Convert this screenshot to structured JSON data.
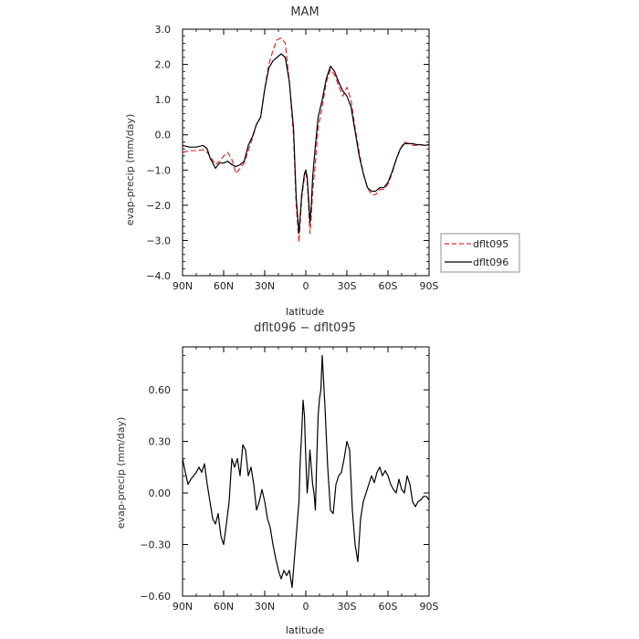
{
  "chart_data": [
    {
      "type": "line",
      "title": "MAM",
      "xlabel": "latitude",
      "ylabel": "evap-precip (mm/day)",
      "xlim": [
        90,
        -90
      ],
      "ylim": [
        -4.0,
        3.0
      ],
      "x_tick_values": [
        90,
        60,
        30,
        0,
        -30,
        -60,
        -90
      ],
      "x_tick_labels": [
        "90N",
        "60N",
        "30N",
        "0",
        "30S",
        "60S",
        "90S"
      ],
      "y_tick_values": [
        3.0,
        2.0,
        1.0,
        0.0,
        -1.0,
        -2.0,
        -3.0,
        -4.0
      ],
      "y_tick_labels": [
        "3.0",
        "2.0",
        "1.0",
        "0.0",
        "−1.0",
        "−2.0",
        "−3.0",
        "−4.0"
      ],
      "legend_position": "right, outside plot",
      "series": [
        {
          "name": "dflt095",
          "color": "#e8262b",
          "dash": "dashed",
          "x": [
            90,
            85,
            80,
            75,
            72,
            70,
            66,
            63,
            60,
            57,
            54,
            51,
            48,
            45,
            42,
            39,
            36,
            33,
            30,
            27,
            24,
            21,
            18,
            15,
            12,
            9,
            7,
            5,
            3,
            1,
            0,
            -1,
            -2,
            -3,
            -4,
            -5,
            -7,
            -9,
            -12,
            -15,
            -18,
            -21,
            -24,
            -27,
            -30,
            -33,
            -36,
            -39,
            -42,
            -45,
            -48,
            -51,
            -54,
            -57,
            -60,
            -63,
            -66,
            -69,
            -72,
            -75,
            -78,
            -81,
            -84,
            -87,
            -90
          ],
          "y": [
            -0.5,
            -0.45,
            -0.45,
            -0.42,
            -0.5,
            -0.6,
            -0.85,
            -0.75,
            -0.6,
            -0.5,
            -0.7,
            -1.1,
            -0.95,
            -0.8,
            -0.45,
            -0.1,
            0.3,
            0.5,
            1.3,
            2.0,
            2.4,
            2.7,
            2.75,
            2.6,
            1.5,
            0.0,
            -2.0,
            -3.05,
            -1.8,
            -1.2,
            -1.1,
            -1.3,
            -2.0,
            -2.8,
            -2.3,
            -1.6,
            -0.8,
            0.2,
            0.8,
            1.5,
            1.85,
            1.7,
            1.4,
            1.1,
            1.35,
            1.0,
            0.2,
            -0.5,
            -1.1,
            -1.5,
            -1.7,
            -1.7,
            -1.55,
            -1.55,
            -1.4,
            -1.1,
            -0.7,
            -0.4,
            -0.2,
            -0.25,
            -0.3,
            -0.3,
            -0.28,
            -0.3,
            -0.28
          ]
        },
        {
          "name": "dflt096",
          "color": "#000000",
          "dash": "solid",
          "x": [
            90,
            85,
            80,
            75,
            72,
            70,
            66,
            63,
            60,
            57,
            54,
            51,
            48,
            45,
            42,
            39,
            36,
            33,
            30,
            27,
            24,
            21,
            18,
            15,
            12,
            9,
            7,
            5,
            3,
            1,
            0,
            -1,
            -2,
            -3,
            -4,
            -5,
            -7,
            -9,
            -12,
            -15,
            -18,
            -21,
            -24,
            -27,
            -30,
            -33,
            -36,
            -39,
            -42,
            -45,
            -48,
            -51,
            -54,
            -57,
            -60,
            -63,
            -66,
            -69,
            -72,
            -75,
            -78,
            -81,
            -84,
            -87,
            -90
          ],
          "y": [
            -0.3,
            -0.35,
            -0.35,
            -0.3,
            -0.4,
            -0.65,
            -0.95,
            -0.8,
            -0.8,
            -0.75,
            -0.85,
            -0.9,
            -0.85,
            -0.75,
            -0.3,
            -0.05,
            0.3,
            0.5,
            1.3,
            1.9,
            2.1,
            2.2,
            2.3,
            2.2,
            1.5,
            0.2,
            -1.8,
            -2.8,
            -1.7,
            -1.1,
            -1.0,
            -1.2,
            -1.8,
            -2.5,
            -2.0,
            -1.2,
            -0.3,
            0.5,
            1.0,
            1.6,
            1.95,
            1.8,
            1.5,
            1.25,
            1.1,
            0.8,
            0.1,
            -0.6,
            -1.1,
            -1.5,
            -1.6,
            -1.6,
            -1.5,
            -1.5,
            -1.35,
            -1.05,
            -0.7,
            -0.4,
            -0.25,
            -0.25,
            -0.25,
            -0.28,
            -0.28,
            -0.3,
            -0.28
          ]
        }
      ]
    },
    {
      "type": "line",
      "title": "dflt096 − dflt095",
      "xlabel": "latitude",
      "ylabel": "evap-precip (mm/day)",
      "xlim": [
        90,
        -90
      ],
      "ylim": [
        -0.6,
        0.85
      ],
      "x_tick_values": [
        90,
        60,
        30,
        0,
        -30,
        -60,
        -90
      ],
      "x_tick_labels": [
        "90N",
        "60N",
        "30N",
        "0",
        "30S",
        "60S",
        "90S"
      ],
      "y_tick_values": [
        0.6,
        0.3,
        0.0,
        -0.3,
        -0.6
      ],
      "y_tick_labels": [
        "0.60",
        "0.30",
        "0.00",
        "−0.30",
        "−0.60"
      ],
      "series": [
        {
          "color": "#000000",
          "dash": "solid",
          "x": [
            90,
            88,
            86,
            84,
            82,
            80,
            78,
            76,
            74,
            72,
            70,
            68,
            66,
            64,
            62,
            60,
            58,
            56,
            54,
            52,
            50,
            48,
            46,
            44,
            42,
            40,
            38,
            36,
            34,
            32,
            30,
            28,
            26,
            24,
            22,
            20,
            18,
            16,
            14,
            12,
            10,
            8,
            6,
            5,
            4,
            3,
            2,
            1,
            0,
            -1,
            -2,
            -3,
            -4,
            -5,
            -6,
            -7,
            -8,
            -9,
            -10,
            -11,
            -12,
            -14,
            -16,
            -18,
            -20,
            -22,
            -24,
            -26,
            -28,
            -30,
            -32,
            -34,
            -36,
            -38,
            -40,
            -42,
            -44,
            -46,
            -48,
            -50,
            -52,
            -54,
            -56,
            -58,
            -60,
            -62,
            -64,
            -66,
            -68,
            -70,
            -72,
            -74,
            -76,
            -78,
            -80,
            -82,
            -84,
            -86,
            -88,
            -90
          ],
          "y": [
            0.2,
            0.12,
            0.05,
            0.08,
            0.1,
            0.12,
            0.15,
            0.12,
            0.17,
            0.05,
            -0.05,
            -0.15,
            -0.18,
            -0.12,
            -0.25,
            -0.3,
            -0.18,
            -0.05,
            0.2,
            0.15,
            0.2,
            0.1,
            0.28,
            0.25,
            0.1,
            0.15,
            0.05,
            -0.1,
            -0.05,
            0.02,
            -0.05,
            -0.15,
            -0.2,
            -0.3,
            -0.38,
            -0.45,
            -0.5,
            -0.45,
            -0.48,
            -0.45,
            -0.55,
            -0.35,
            -0.15,
            -0.05,
            0.2,
            0.35,
            0.54,
            0.45,
            0.2,
            0.0,
            0.1,
            0.25,
            0.15,
            0.05,
            0.0,
            -0.1,
            0.2,
            0.45,
            0.55,
            0.6,
            0.8,
            0.5,
            0.15,
            -0.1,
            -0.12,
            0.05,
            0.1,
            0.12,
            0.2,
            0.3,
            0.25,
            -0.1,
            -0.3,
            -0.4,
            -0.15,
            -0.05,
            0.0,
            0.05,
            0.1,
            0.06,
            0.12,
            0.15,
            0.1,
            0.13,
            0.1,
            0.05,
            0.02,
            0.0,
            0.08,
            0.02,
            0.0,
            0.1,
            0.05,
            -0.05,
            -0.08,
            -0.05,
            -0.04,
            -0.02,
            -0.02,
            -0.04
          ]
        }
      ]
    }
  ]
}
